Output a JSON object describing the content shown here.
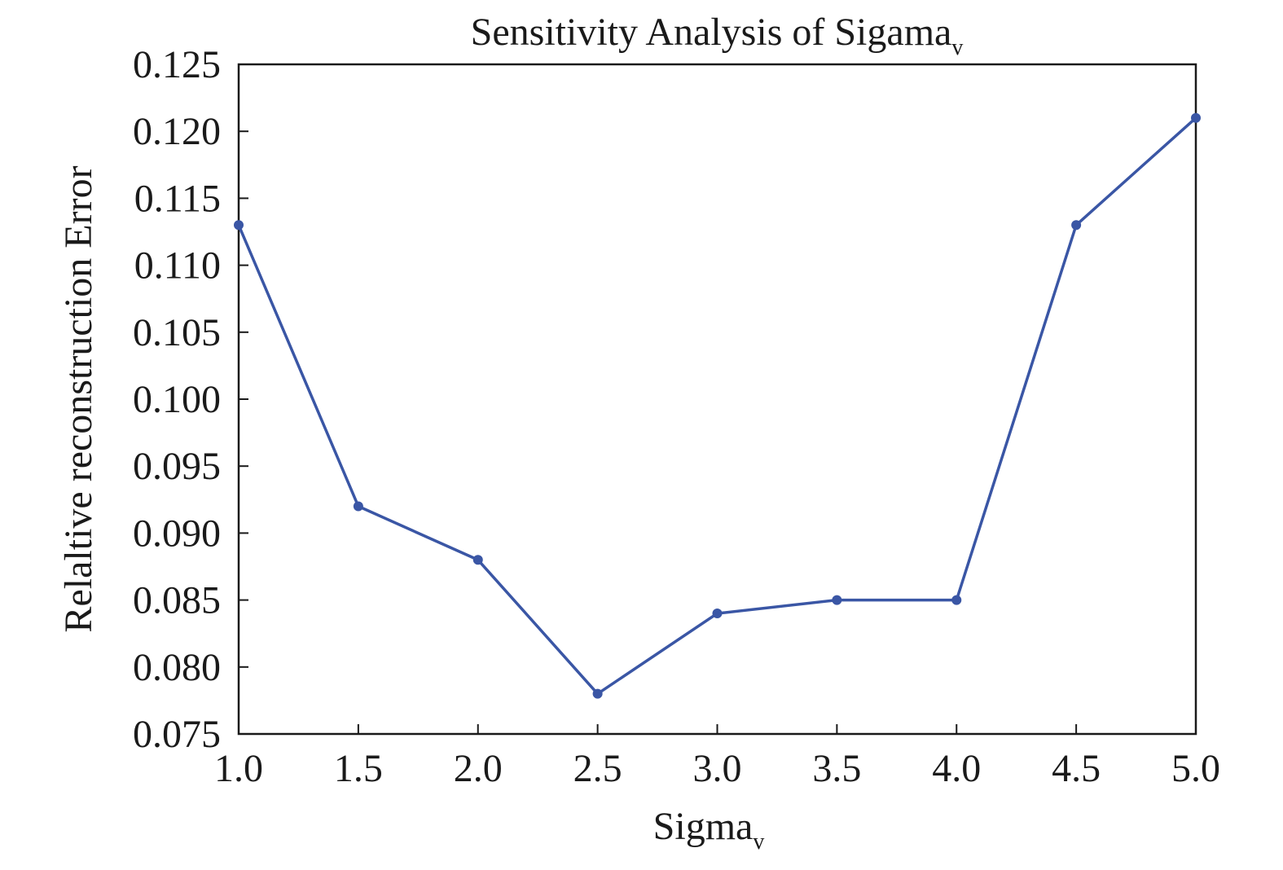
{
  "chart_data": {
    "type": "line",
    "title": "Sensitivity Analysis of Sigama",
    "title_subscript": "v",
    "xlabel": "Sigma",
    "xlabel_subscript": "v",
    "ylabel": "Relaltive reconstruction Error",
    "xlim": [
      1.0,
      5.0
    ],
    "ylim": [
      0.075,
      0.125
    ],
    "xticks": [
      "1.0",
      "1.5",
      "2.0",
      "2.5",
      "3.0",
      "3.5",
      "4.0",
      "4.5",
      "5.0"
    ],
    "yticks": [
      "0.075",
      "0.080",
      "0.085",
      "0.090",
      "0.095",
      "0.100",
      "0.105",
      "0.110",
      "0.115",
      "0.120",
      "0.125"
    ],
    "grid": false,
    "series": [
      {
        "color": "#3a56a5",
        "x": [
          1.0,
          1.5,
          2.0,
          2.5,
          3.0,
          3.5,
          4.0,
          4.5,
          5.0
        ],
        "y": [
          0.113,
          0.092,
          0.088,
          0.078,
          0.084,
          0.085,
          0.085,
          0.113,
          0.121
        ]
      }
    ]
  }
}
